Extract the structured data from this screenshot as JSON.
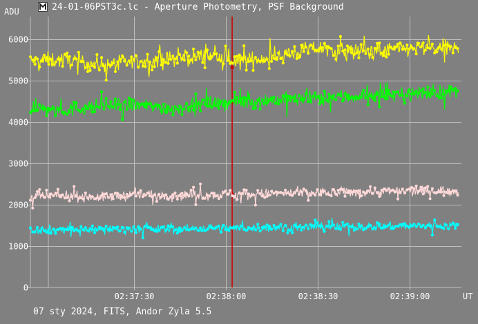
{
  "window": {
    "title": "24-01-06PST3c.lc - Aperture Photometry, PSF Background"
  },
  "footer": {
    "status": "07 sty 2024, FITS, Andor Zyla 5.5"
  },
  "icons": {
    "app": "photometry-app-icon"
  },
  "chart_data": {
    "type": "scatter",
    "ylabel": "ADU",
    "xlabel": "UT",
    "ylim": [
      0,
      6550
    ],
    "y_ticks": [
      0,
      1000,
      2000,
      3000,
      4000,
      5000,
      6000
    ],
    "x_range_seconds": [
      "02:36:56",
      "02:39:17"
    ],
    "x_tick_labels": [
      "02:37:30",
      "02:38:00",
      "02:38:30",
      "02:39:00"
    ],
    "grid": true,
    "marker_time": "02:38:02",
    "colors": {
      "background": "#808080",
      "grid": "#c0c0c0",
      "marker": "#cc0000"
    },
    "series": [
      {
        "color": "#ffff00",
        "x_start": "02:36:56",
        "x_end": "02:39:16",
        "samples": [
          5480,
          5500,
          5380,
          5460,
          5520,
          5610,
          5470,
          5610,
          5780,
          5700,
          5740,
          5790,
          5780
        ],
        "scatter": 180
      },
      {
        "color": "#00ff00",
        "x_start": "02:36:56",
        "x_end": "02:39:16",
        "samples": [
          4330,
          4290,
          4390,
          4410,
          4320,
          4460,
          4480,
          4540,
          4570,
          4610,
          4650,
          4700,
          4730
        ],
        "scatter": 160
      },
      {
        "color": "#ffd8d8",
        "x_start": "02:36:56",
        "x_end": "02:39:16",
        "samples": [
          2200,
          2220,
          2180,
          2250,
          2230,
          2240,
          2260,
          2270,
          2290,
          2300,
          2320,
          2330,
          2350
        ],
        "scatter": 110
      },
      {
        "color": "#00ffff",
        "x_start": "02:36:56",
        "x_end": "02:39:16",
        "samples": [
          1390,
          1400,
          1410,
          1420,
          1410,
          1430,
          1440,
          1450,
          1460,
          1470,
          1480,
          1490,
          1500
        ],
        "scatter": 90
      }
    ]
  }
}
